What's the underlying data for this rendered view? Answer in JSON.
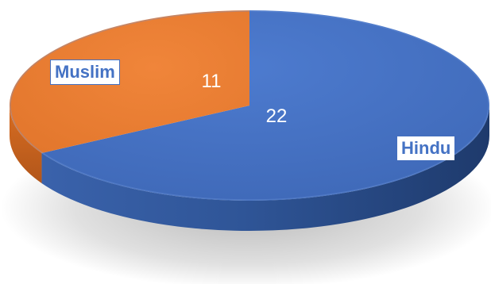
{
  "chart_data": {
    "type": "pie",
    "style": "3d",
    "categories": [
      "Hindu",
      "Muslim"
    ],
    "values": [
      22,
      11
    ],
    "colors": [
      "#4472C4",
      "#ED7D31"
    ],
    "data_labels": [
      "22",
      "11"
    ],
    "title": "",
    "legend": "none"
  }
}
